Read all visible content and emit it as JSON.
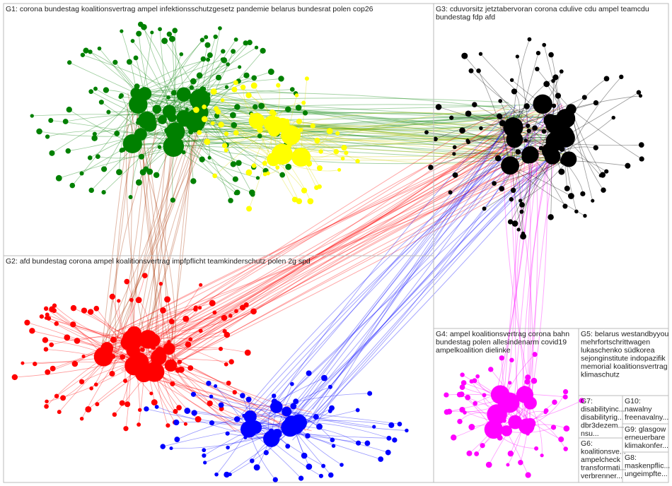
{
  "groups": [
    {
      "lines": [
        "G1: corona bundestag koalitionsvertrag ampel infektionsschutzgesetz pandemie belarus bundesrat polen cop26"
      ]
    },
    {
      "lines": [
        "G2: afd bundestag corona ampel koalitionsvertrag impfpflicht teamkinderschutz polen 2g spd"
      ]
    },
    {
      "lines": [
        "G3: cduvorsitz jetztabervoran corona cdulive cdu ampel teamcdu",
        "bundestag fdp afd"
      ]
    },
    {
      "lines": [
        "G4: ampel koalitionsvertrag corona bahn",
        "bundestag polen allesindenarm covid19",
        "ampelkoalition dielinke"
      ]
    },
    {
      "lines": [
        "G5: belarus westandbyyou",
        "mehrfortschrittwagen",
        "lukaschenko südkorea",
        "sejonginstitute indopazifik",
        "memorial koalitionsvertrag",
        "klimaschutz"
      ]
    },
    {
      "lines": [
        "G7:",
        "disabilityinc...",
        "disabilityrig...",
        "dbr3dezem...",
        "nsu..."
      ]
    },
    {
      "lines": [
        "G6:",
        "koalitionsve...",
        "ampelcheck",
        "transformati...",
        "verbrenner..."
      ]
    },
    {
      "lines": [
        "G10:",
        "nawalny",
        "freenavalny..."
      ]
    },
    {
      "lines": [
        "G9: glasgow",
        "erneuerbare",
        "klimakonfer..."
      ]
    },
    {
      "lines": [
        "G8:",
        "maskenpflic...",
        "ungeimpfte..."
      ]
    }
  ]
}
